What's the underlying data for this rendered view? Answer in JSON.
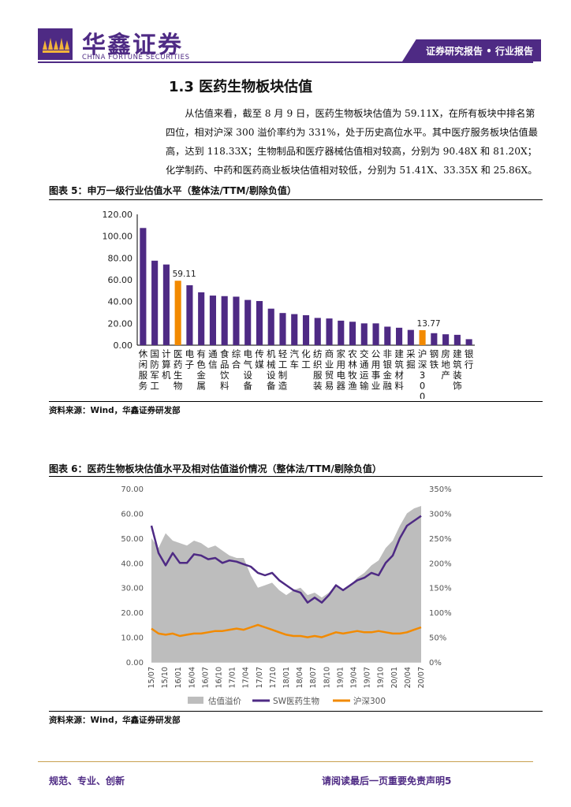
{
  "header": {
    "logo_cn": "华鑫证券",
    "logo_en": "CHINA FORTUNE SECURITIES",
    "tag": "证券研究报告 • 行业报告",
    "brand_color": "#4e2a84"
  },
  "section": {
    "title": "1.3 医药生物板块估值",
    "paragraph": "从估值来看，截至 8 月 9 日，医药生物板块估值为 59.11X，在所有板块中排名第四位，相对沪深 300 溢价率约为 331%，处于历史高位水平。其中医疗服务板块估值最高，达到 118.33X；生物制品和医疗器械估值相对较高，分别为 90.48X 和 81.20X；化学制药、中药和医药商业板块估值相对较低，分别为 51.41X、33.35X 和 25.86X。"
  },
  "figure5": {
    "title": "图表 5：申万一级行业估值水平（整体法/TTM/剔除负值）",
    "source": "资料来源：Wind，华鑫证券研发部"
  },
  "figure6": {
    "title": "图表 6：医药生物板块估值水平及相对估值溢价情况（整体法/TTM/剔除负值）",
    "source": "资料来源：Wind，华鑫证券研发部"
  },
  "footer": {
    "left": "规范、专业、创新",
    "right": "请阅读最后一页重要免责声明5"
  },
  "chart_data": [
    {
      "type": "bar",
      "categories": [
        "休闲服务",
        "国防军工",
        "计算机",
        "医药生物",
        "电子",
        "有色金属",
        "通信",
        "食品饮料",
        "综合",
        "电气设备",
        "传媒",
        "机械设备",
        "轻工制造",
        "汽车",
        "化工",
        "纺织服装",
        "商业贸易",
        "家用电器",
        "农林牧渔",
        "交通运输",
        "公用事业",
        "非银金融",
        "建筑材料",
        "采掘",
        "沪深300",
        "钢铁",
        "房地产",
        "建筑装饰",
        "银行"
      ],
      "values": [
        107.5,
        77.5,
        74.0,
        59.11,
        55.0,
        48.5,
        45.5,
        45.0,
        44.5,
        41.5,
        40.5,
        33.5,
        29.5,
        28.5,
        27.5,
        25.0,
        24.5,
        22.5,
        21.5,
        20.0,
        20.0,
        17.0,
        16.0,
        14.0,
        13.77,
        11.0,
        10.0,
        9.5,
        5.5
      ],
      "highlight": [
        "医药生物",
        "沪深300"
      ],
      "data_labels": {
        "医药生物": "59.11",
        "沪深300": "13.77"
      },
      "y_ticks": [
        "120.00",
        "100.00",
        "80.00",
        "60.00",
        "40.00",
        "20.00",
        "0.00"
      ],
      "ylim": [
        0,
        120
      ],
      "colors": {
        "default": "#4e2a84",
        "highlight": "#f28a00"
      }
    },
    {
      "type": "line",
      "x_ticks": [
        "15/07",
        "15/10",
        "16/01",
        "16/04",
        "16/07",
        "16/10",
        "17/01",
        "17/04",
        "17/07",
        "17/10",
        "18/01",
        "18/04",
        "18/07",
        "18/10",
        "19/01",
        "19/04",
        "19/07",
        "19/10",
        "20/01",
        "20/04",
        "20/07"
      ],
      "y_left_ticks": [
        "70.00",
        "60.00",
        "50.00",
        "40.00",
        "30.00",
        "20.00",
        "10.00",
        "0.00"
      ],
      "y_right_ticks": [
        "350%",
        "300%",
        "250%",
        "200%",
        "150%",
        "100%",
        "50%",
        "0%"
      ],
      "ylim_left": [
        0,
        70
      ],
      "ylim_right": [
        0,
        3.5
      ],
      "legend_position": "bottom",
      "series": [
        {
          "name": "估值溢价",
          "kind": "area",
          "axis": "right",
          "color": "#bdbdbd",
          "values": [
            2.5,
            2.3,
            2.6,
            2.45,
            2.4,
            2.35,
            2.45,
            2.4,
            2.3,
            2.35,
            2.25,
            2.15,
            2.1,
            2.1,
            1.75,
            1.5,
            1.55,
            1.6,
            1.45,
            1.35,
            1.45,
            1.5,
            1.35,
            1.4,
            1.3,
            1.4,
            1.55,
            1.45,
            1.55,
            1.7,
            1.8,
            1.95,
            2.05,
            2.3,
            2.45,
            2.75,
            3.0,
            3.1,
            3.15
          ]
        },
        {
          "name": "SW医药生物",
          "kind": "line",
          "axis": "left",
          "color": "#4e2a84",
          "values": [
            55.0,
            44.0,
            39.0,
            44.0,
            40.0,
            40.0,
            43.5,
            43.0,
            41.5,
            42.0,
            40.0,
            41.0,
            40.5,
            39.5,
            38.5,
            36.0,
            35.0,
            36.0,
            33.0,
            31.0,
            29.0,
            28.0,
            24.0,
            26.0,
            24.0,
            27.0,
            31.0,
            29.0,
            31.0,
            33.0,
            34.0,
            36.0,
            35.0,
            40.0,
            43.0,
            50.0,
            55.0,
            57.0,
            59.0
          ]
        },
        {
          "name": "沪深300",
          "kind": "line",
          "axis": "left",
          "color": "#f28a00",
          "values": [
            13.5,
            11.5,
            11.0,
            11.5,
            10.5,
            11.0,
            11.5,
            11.5,
            12.0,
            12.5,
            12.5,
            13.0,
            13.5,
            13.0,
            14.0,
            15.0,
            14.0,
            13.0,
            12.0,
            11.0,
            10.5,
            10.5,
            10.0,
            10.5,
            10.0,
            11.0,
            12.0,
            11.5,
            12.0,
            12.5,
            12.0,
            12.0,
            12.5,
            12.0,
            11.5,
            11.5,
            12.0,
            13.0,
            14.0
          ]
        }
      ]
    }
  ]
}
